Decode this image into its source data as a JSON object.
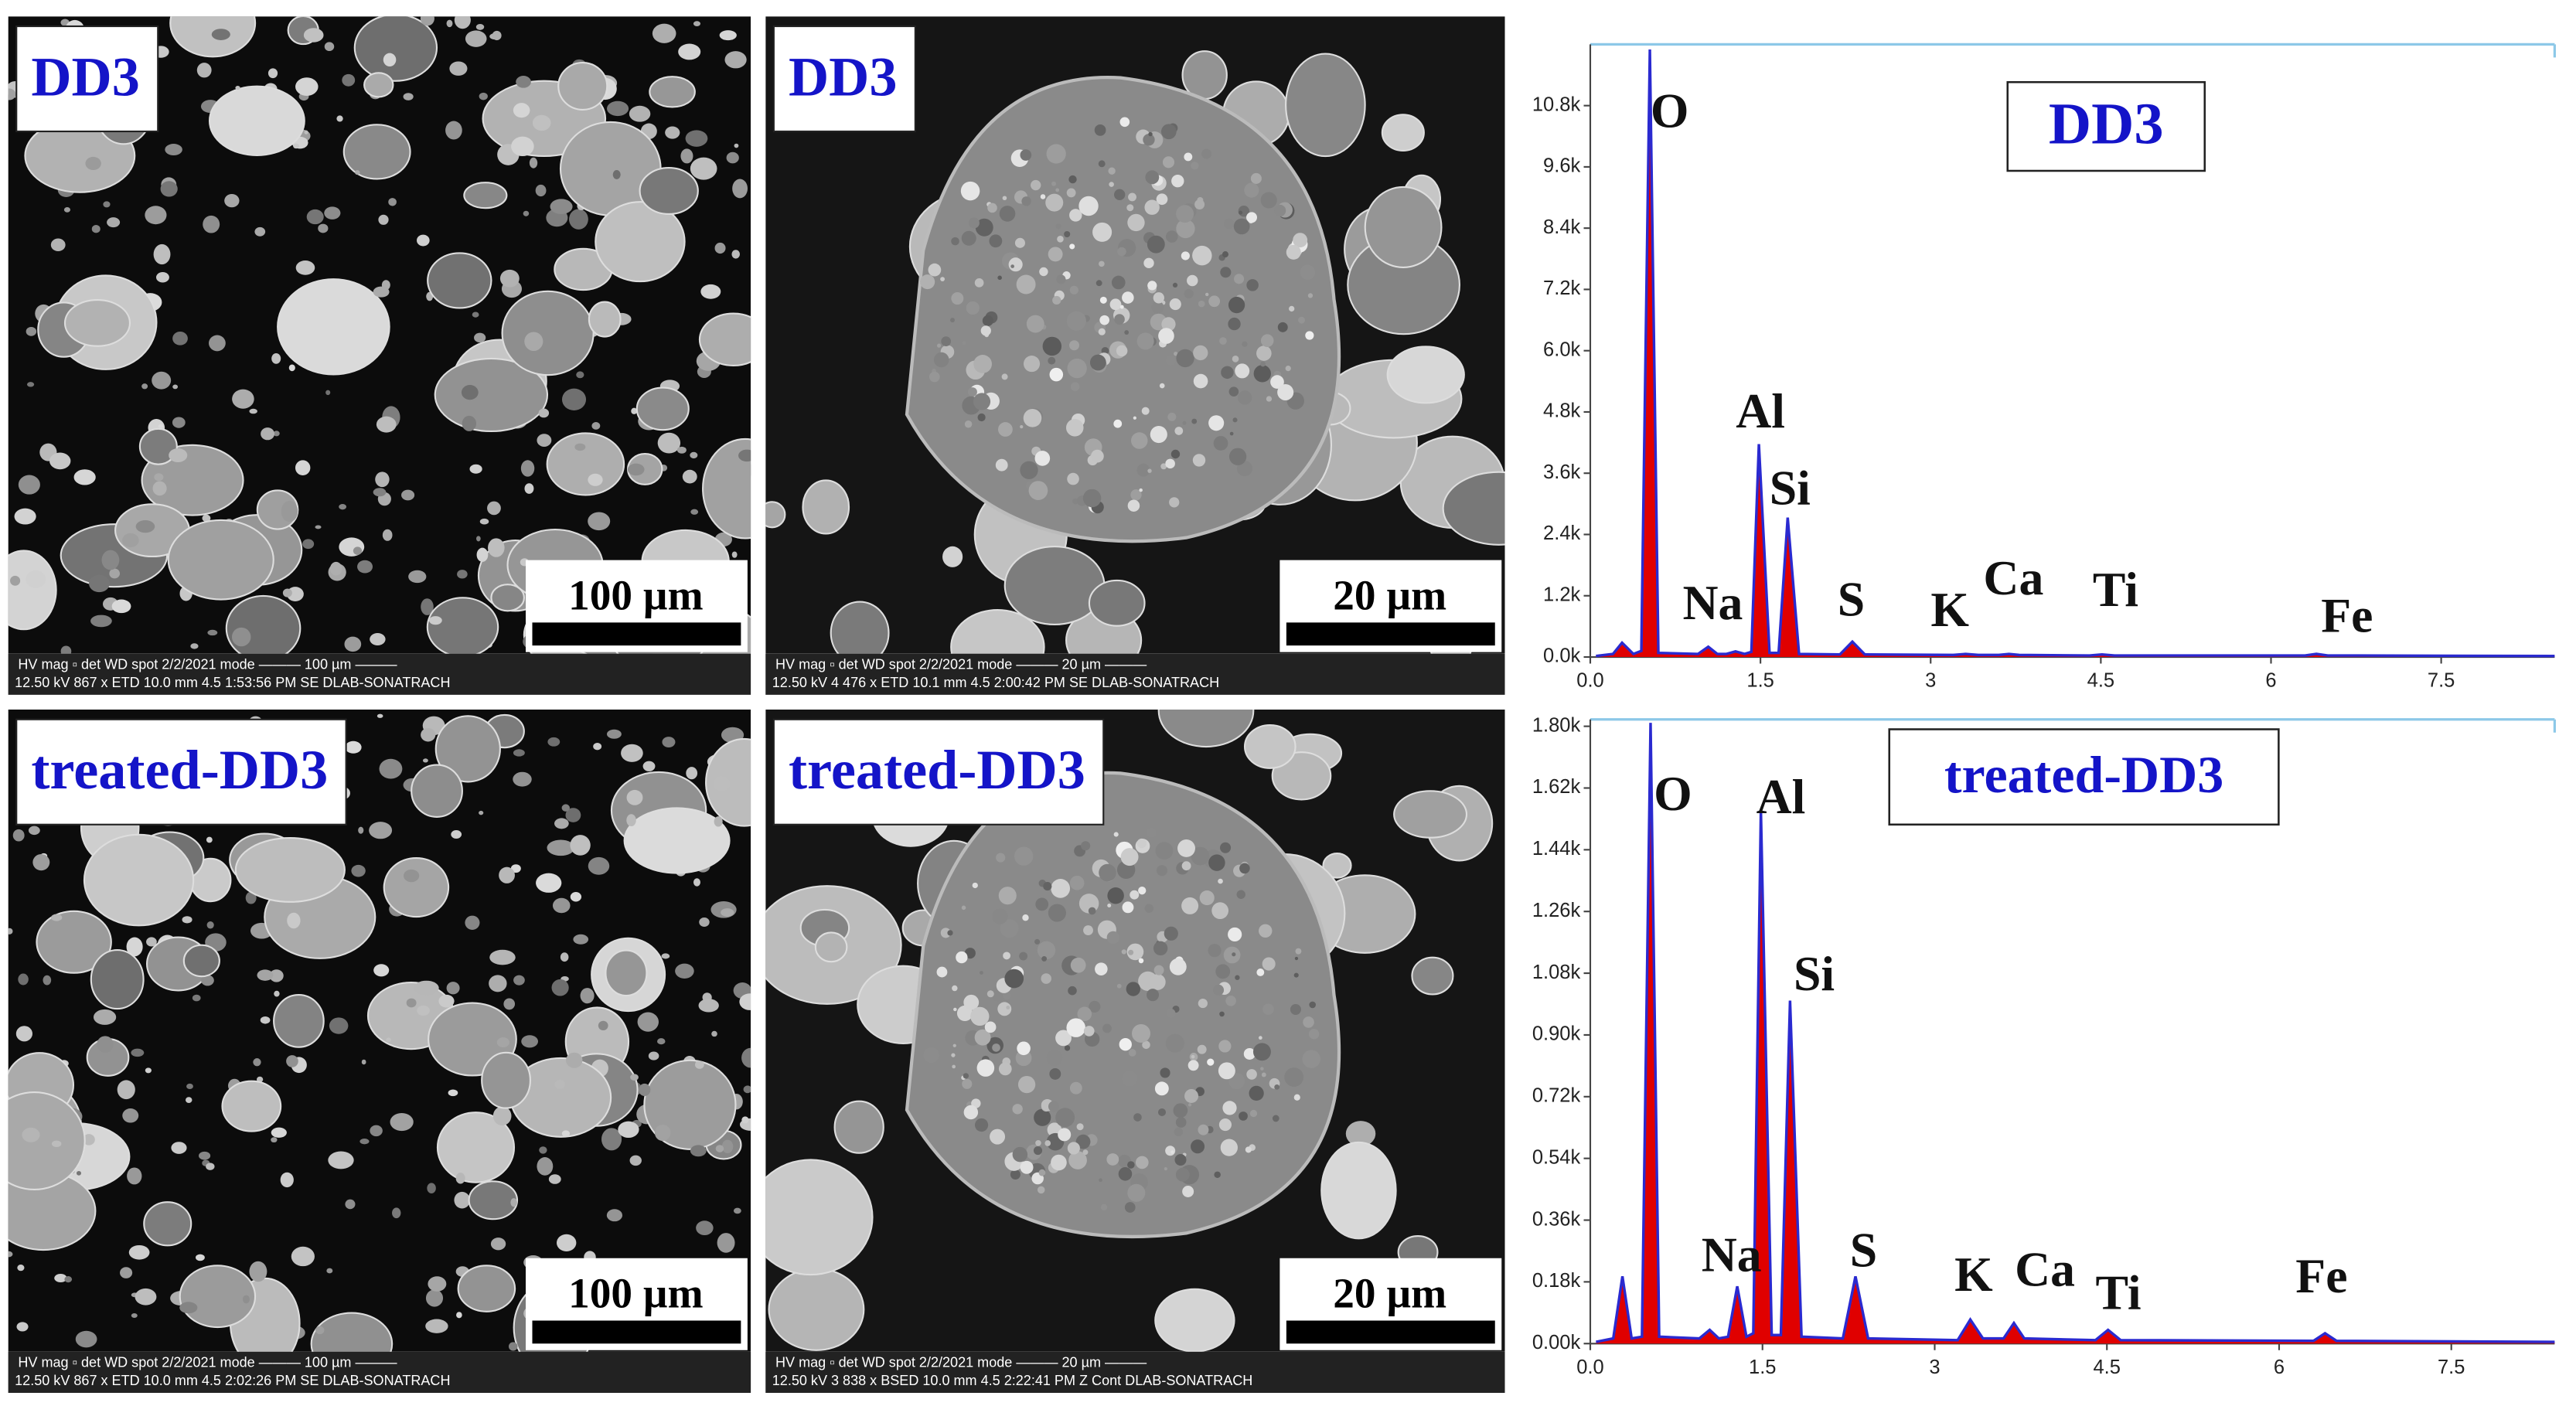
{
  "panels": [
    {
      "label": "DD3",
      "scale_bar": "100 µm",
      "info_top": "HV    mag ▫    det    WD    spot   2/2/2021   mode   ——— 100 µm ———",
      "info_bottom": "12.50 kV  867 x  ETD  10.0 mm  4.5  1:53:56 PM  SE      DLAB-SONATRACH"
    },
    {
      "label": "DD3",
      "scale_bar": "20 µm",
      "info_top": "HV    mag ▫    det    WD    spot   2/2/2021   mode   ——— 20 µm ———",
      "info_bottom": "12.50 kV  4 476 x  ETD  10.1 mm  4.5  2:00:42 PM  SE      DLAB-SONATRACH"
    },
    {
      "label": "treated-DD3",
      "scale_bar": "100 µm",
      "info_top": "HV    mag ▫    det    WD    spot   2/2/2021   mode   ——— 100 µm ———",
      "info_bottom": "12.50 kV  867 x  ETD  10.0 mm  4.5  2:02:26 PM  SE      DLAB-SONATRACH"
    },
    {
      "label": "treated-DD3",
      "scale_bar": "20 µm",
      "info_top": "HV    mag ▫    det    WD    spot   2/2/2021   mode   ——— 20 µm ———",
      "info_bottom": "12.50 kV  3 838 x  BSED  10.0 mm  4.5  2:22:41 PM  Z Cont  DLAB-SONATRACH"
    }
  ],
  "chart_data": [
    {
      "type": "line",
      "title": "DD3",
      "fill_color": "#e00000",
      "x": [
        0.05,
        0.2,
        0.28,
        0.38,
        0.45,
        0.525,
        0.6,
        0.95,
        1.04,
        1.12,
        1.2,
        1.28,
        1.36,
        1.42,
        1.486,
        1.58,
        1.66,
        1.74,
        1.84,
        2.2,
        2.31,
        2.42,
        3.2,
        3.31,
        3.42,
        3.6,
        3.69,
        3.78,
        4.4,
        4.51,
        4.62,
        6.3,
        6.4,
        6.5,
        8.5
      ],
      "series": [
        {
          "name": "DD3",
          "color": "#2a2ad0",
          "values": [
            20,
            60,
            280,
            60,
            120,
            11900,
            80,
            60,
            200,
            60,
            60,
            110,
            60,
            100,
            4170,
            80,
            80,
            2730,
            60,
            50,
            300,
            50,
            40,
            60,
            40,
            40,
            60,
            40,
            30,
            50,
            30,
            30,
            60,
            30,
            20
          ]
        }
      ],
      "xlim": [
        0,
        8.5
      ],
      "ylim": [
        0,
        12000
      ],
      "xticks": [
        {
          "value": 0,
          "label": "0.0"
        },
        1.5,
        3,
        4.5,
        6,
        7.5
      ],
      "yticks": [
        {
          "value": 0,
          "label": "0.0k"
        },
        {
          "value": 1200,
          "label": "1.2k"
        },
        {
          "value": 2400,
          "label": "2.4k"
        },
        {
          "value": 3600,
          "label": "3.6k"
        },
        {
          "value": 4800,
          "label": "4.8k"
        },
        {
          "value": 6000,
          "label": "6.0k"
        },
        {
          "value": 7200,
          "label": "7.2k"
        },
        {
          "value": 8400,
          "label": "8.4k"
        },
        {
          "value": 9600,
          "label": "9.6k"
        },
        {
          "value": 10800,
          "label": "10.8k"
        }
      ],
      "annotations": [
        {
          "label": "O",
          "x": 0.7,
          "y": 10600
        },
        {
          "label": "Al",
          "x": 1.5,
          "y": 4720
        },
        {
          "label": "Si",
          "x": 1.76,
          "y": 3210
        },
        {
          "label": "Na",
          "x": 1.08,
          "y": 960
        },
        {
          "label": "S",
          "x": 2.3,
          "y": 1030
        },
        {
          "label": "K",
          "x": 3.17,
          "y": 830
        },
        {
          "label": "Ca",
          "x": 3.73,
          "y": 1450
        },
        {
          "label": "Ti",
          "x": 4.63,
          "y": 1220
        },
        {
          "label": "Fe",
          "x": 6.67,
          "y": 710
        }
      ]
    },
    {
      "type": "line",
      "title": "treated-DD3",
      "fill_color": "#e00000",
      "x": [
        0.05,
        0.2,
        0.28,
        0.36,
        0.45,
        0.525,
        0.6,
        0.95,
        1.04,
        1.12,
        1.2,
        1.28,
        1.36,
        1.42,
        1.486,
        1.58,
        1.66,
        1.74,
        1.84,
        2.2,
        2.31,
        2.42,
        3.2,
        3.31,
        3.42,
        3.6,
        3.69,
        3.78,
        4.4,
        4.51,
        4.62,
        6.3,
        6.4,
        6.5,
        8.4
      ],
      "series": [
        {
          "name": "treated-DD3",
          "color": "#2a2ad0",
          "values": [
            5,
            15,
            196,
            15,
            20,
            1810,
            20,
            15,
            40,
            15,
            20,
            167,
            20,
            30,
            1556,
            25,
            25,
            1000,
            20,
            15,
            196,
            15,
            10,
            70,
            15,
            15,
            60,
            15,
            10,
            40,
            10,
            8,
            30,
            8,
            5
          ]
        }
      ],
      "xlim": [
        0,
        8.4
      ],
      "ylim": [
        0,
        1820
      ],
      "xticks": [
        {
          "value": 0,
          "label": "0.0"
        },
        1.5,
        3,
        4.5,
        6,
        7.5
      ],
      "yticks": [
        {
          "value": 0,
          "label": "0.00k"
        },
        {
          "value": 180,
          "label": "0.18k"
        },
        {
          "value": 360,
          "label": "0.36k"
        },
        {
          "value": 540,
          "label": "0.54k"
        },
        {
          "value": 720,
          "label": "0.72k"
        },
        {
          "value": 900,
          "label": "0.90k"
        },
        {
          "value": 1080,
          "label": "1.08k"
        },
        {
          "value": 1260,
          "label": "1.26k"
        },
        {
          "value": 1440,
          "label": "1.44k"
        },
        {
          "value": 1620,
          "label": "1.62k"
        },
        {
          "value": 1800,
          "label": "1.80k"
        }
      ],
      "annotations": [
        {
          "label": "O",
          "x": 0.72,
          "y": 1589
        },
        {
          "label": "Al",
          "x": 1.66,
          "y": 1580
        },
        {
          "label": "Si",
          "x": 1.95,
          "y": 1063
        },
        {
          "label": "Na",
          "x": 1.23,
          "y": 244
        },
        {
          "label": "S",
          "x": 2.38,
          "y": 258
        },
        {
          "label": "K",
          "x": 3.34,
          "y": 187
        },
        {
          "label": "Ca",
          "x": 3.96,
          "y": 201
        },
        {
          "label": "Ti",
          "x": 4.6,
          "y": 134
        },
        {
          "label": "Fe",
          "x": 6.37,
          "y": 182
        }
      ]
    }
  ]
}
